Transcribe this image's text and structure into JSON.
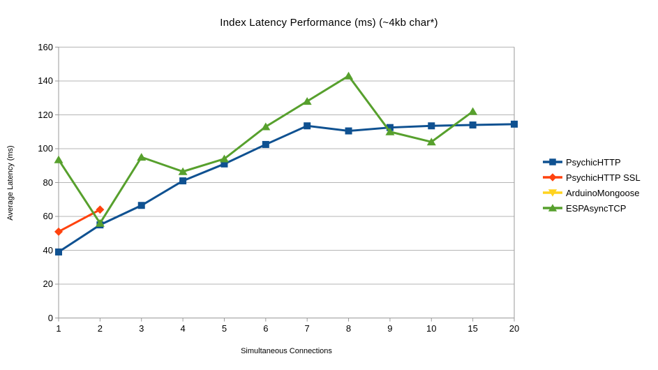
{
  "page": {
    "background": "#ffffff"
  },
  "chart_data": {
    "type": "line",
    "title": "Index Latency Performance (ms) (~4kb char*)",
    "xlabel": "Simultaneous Connections",
    "ylabel": "Average Latency (ms)",
    "categories": [
      "1",
      "2",
      "3",
      "4",
      "5",
      "6",
      "7",
      "8",
      "9",
      "10",
      "15",
      "20"
    ],
    "ylim": [
      0,
      160
    ],
    "ytick_step": 20,
    "grid": "horizontal",
    "legend_position": "right",
    "grid_color": "#b5b5b5",
    "axis_color": "#9a9a9a",
    "series": [
      {
        "name": "PsychicHTTP",
        "color": "#0F5191",
        "marker": "square",
        "values": [
          39,
          55,
          66.5,
          81,
          91,
          102.5,
          113.5,
          110.5,
          112.5,
          113.5,
          114,
          114.5
        ]
      },
      {
        "name": "PsychicHTTP SSL",
        "color": "#FF420E",
        "marker": "diamond",
        "values": [
          51,
          64,
          null,
          null,
          null,
          null,
          null,
          null,
          null,
          null,
          null,
          null
        ]
      },
      {
        "name": "ArduinoMongoose",
        "color": "#FFD320",
        "marker": "triangle-down",
        "values": [
          null,
          null,
          null,
          null,
          null,
          null,
          null,
          null,
          null,
          null,
          null,
          null
        ]
      },
      {
        "name": "ESPAsyncTCP",
        "color": "#57A02D",
        "marker": "triangle-up",
        "values": [
          93.5,
          56,
          95,
          86.5,
          94,
          113,
          128,
          143,
          110,
          104,
          122,
          null
        ]
      }
    ]
  }
}
